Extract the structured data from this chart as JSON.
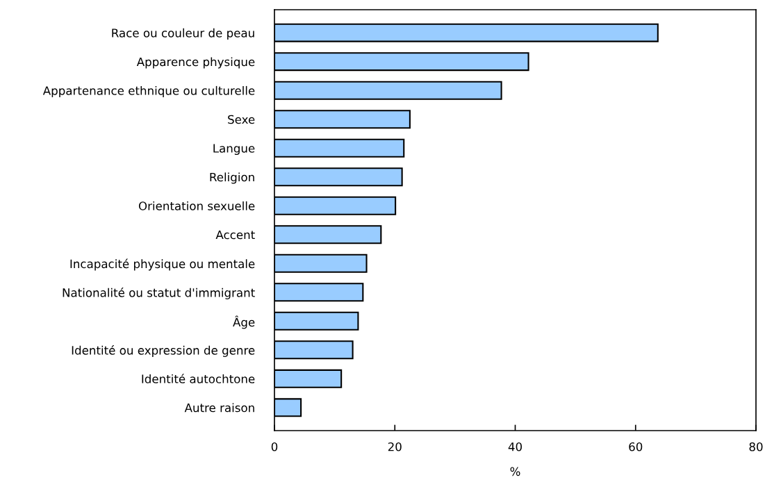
{
  "chart_data": {
    "type": "bar",
    "orientation": "horizontal",
    "xlabel": "%",
    "categories": [
      "Race ou couleur de peau",
      "Apparence physique",
      "Appartenance ethnique ou culturelle",
      "Sexe",
      "Langue",
      "Religion",
      "Orientation sexuelle",
      "Accent",
      "Incapacité physique ou mentale",
      "Nationalité ou statut d'immigrant",
      "Âge",
      "Identité ou expression de genre",
      "Identité autochtone",
      "Autre raison"
    ],
    "values": [
      63.7,
      42.2,
      37.7,
      22.5,
      21.5,
      21.2,
      20.1,
      17.7,
      15.3,
      14.7,
      13.9,
      13.0,
      11.1,
      4.4
    ],
    "color": "#99ccff",
    "xlim": [
      0,
      80
    ],
    "xticks": [
      0,
      20,
      40,
      60,
      80
    ],
    "grid": false,
    "legend": false
  }
}
